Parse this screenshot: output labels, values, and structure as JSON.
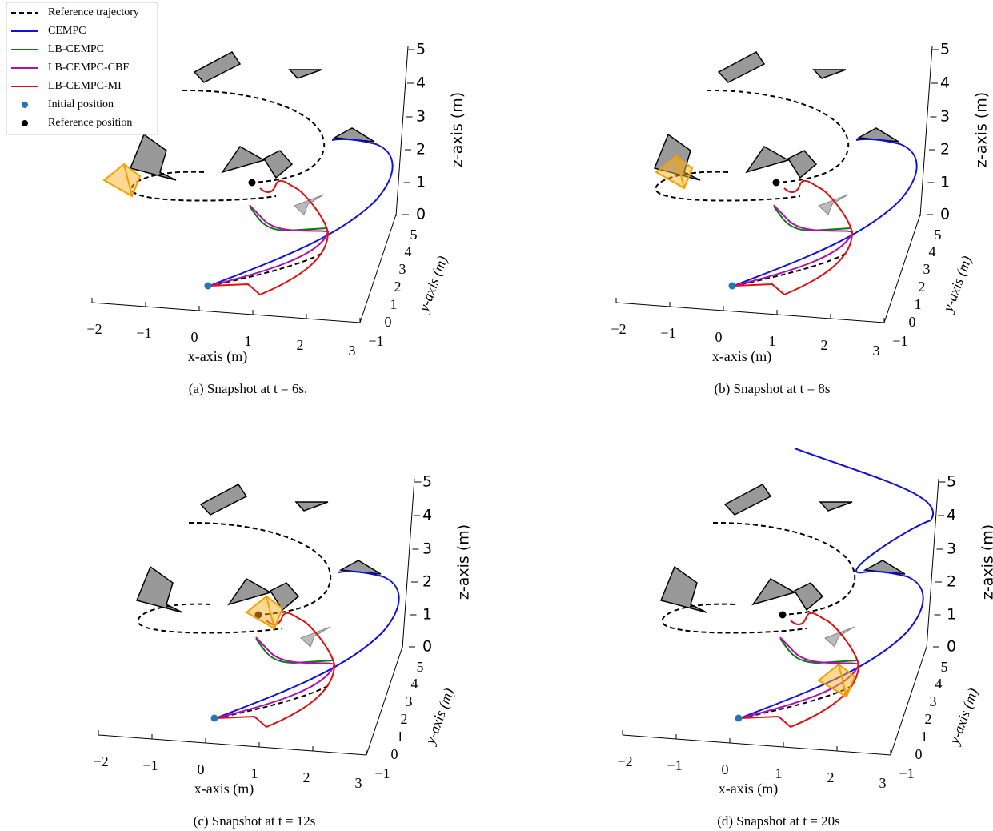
{
  "legend": [
    "Reference trajectory",
    "CEMPC",
    "LB-CEMPC",
    "LB-CEMPC-CBF",
    "LB-CEMPC-MI",
    "Initial position",
    "Reference position"
  ],
  "panels": [
    {
      "caption": "(a) Snapshot at t = 6s.",
      "x_axis": {
        "title": "x-axis (m)",
        "ticks": [
          "−2",
          "−1",
          "0",
          "1",
          "2",
          "3"
        ]
      },
      "y_axis": {
        "title": "y-axis (m)",
        "ticks": [
          "−1",
          "0",
          "1",
          "2",
          "3",
          "4",
          "5"
        ]
      },
      "z_axis": {
        "title": "z-axis (m)",
        "ticks": [
          "0",
          "1",
          "2",
          "3",
          "4",
          "5"
        ]
      }
    },
    {
      "caption": "(b) Snapshot at t = 8s",
      "x_axis": {
        "title": "x-axis (m)",
        "ticks": [
          "−2",
          "−1",
          "0",
          "1",
          "2",
          "3"
        ]
      },
      "y_axis": {
        "title": "y-axis (m)",
        "ticks": [
          "−1",
          "0",
          "1",
          "2",
          "3",
          "4",
          "5"
        ]
      },
      "z_axis": {
        "title": "z-axis (m)",
        "ticks": [
          "0",
          "1",
          "2",
          "3",
          "4",
          "5"
        ]
      }
    },
    {
      "caption": "(c) Snapshot at t = 12s",
      "x_axis": {
        "title": "x-axis (m)",
        "ticks": [
          "−2",
          "−1",
          "0",
          "1",
          "2",
          "3"
        ]
      },
      "y_axis": {
        "title": "y-axis (m)",
        "ticks": [
          "−1",
          "0",
          "1",
          "2",
          "3",
          "4",
          "5"
        ]
      },
      "z_axis": {
        "title": "z-axis (m)",
        "ticks": [
          "0",
          "1",
          "2",
          "3",
          "4",
          "5"
        ]
      }
    },
    {
      "caption": "(d) Snapshot at t = 20s",
      "x_axis": {
        "title": "x-axis (m)",
        "ticks": [
          "−2",
          "−1",
          "0",
          "1",
          "2",
          "3"
        ]
      },
      "y_axis": {
        "title": "y-axis (m)",
        "ticks": [
          "−1",
          "0",
          "1",
          "2",
          "3",
          "4",
          "5"
        ]
      },
      "z_axis": {
        "title": "z-axis (m)",
        "ticks": [
          "0",
          "1",
          "2",
          "3",
          "4",
          "5"
        ]
      }
    }
  ]
}
